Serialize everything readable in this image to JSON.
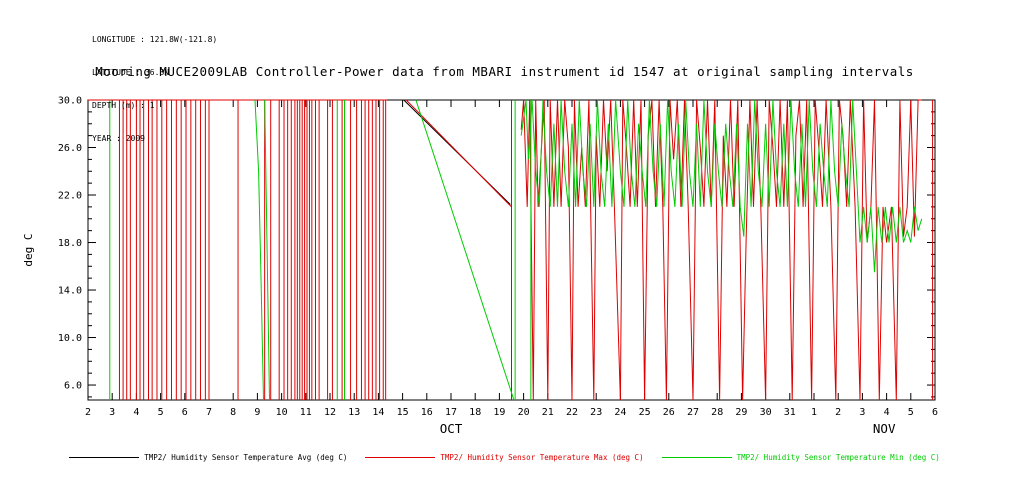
{
  "header": {
    "line1": "LONGITUDE : 121.8W(-121.8)",
    "line2": "LATITUDE : 36.8N",
    "line3": "DEPTH (m) : 1",
    "line4": "YEAR : 2009"
  },
  "title": "Mooring MUCE2009LAB Controller-Power data from MBARI instrument id 1547 at original sampling intervals",
  "chart_data": {
    "type": "line",
    "title": "Mooring MUCE2009LAB Controller-Power data from MBARI instrument id 1547 at original sampling intervals",
    "ylabel": "deg C",
    "xlabel": "",
    "ylim": [
      4.74,
      30.0
    ],
    "xlim": [
      2,
      37
    ],
    "grid": false,
    "legend_position": "bottom",
    "yticks": [
      6,
      10,
      14,
      18,
      22,
      26,
      30
    ],
    "ytick_labels": [
      "6.0",
      "10.0",
      "14.0",
      "18.0",
      "22.0",
      "26.0",
      "30.0"
    ],
    "xtick_labels": [
      "2",
      "3",
      "4",
      "5",
      "6",
      "7",
      "8",
      "9",
      "10",
      "11",
      "12",
      "13",
      "14",
      "15",
      "16",
      "17",
      "18",
      "19",
      "20",
      "21",
      "22",
      "23",
      "24",
      "25",
      "26",
      "27",
      "28",
      "29",
      "30",
      "31",
      "1",
      "2",
      "3",
      "4",
      "5",
      "6"
    ],
    "month_labels": [
      {
        "label": "OCT",
        "day": 17
      },
      {
        "label": "NOV",
        "day": 34.9
      }
    ],
    "series": [
      {
        "name": "TMP2/ Humidity Sensor Temperature Avg (deg C)",
        "color": "#000000",
        "vlines": [],
        "segments": [
          [
            [
              2.0,
              30
            ],
            [
              14.35,
              30
            ]
          ],
          [
            [
              15.05,
              30
            ],
            [
              19.45,
              21.2
            ]
          ]
        ]
      },
      {
        "name": "TMP2/ Humidity Sensor Temperature Max (deg C)",
        "color": "#dd0000",
        "vlines": [
          3.3,
          3.45,
          3.6,
          3.75,
          4.0,
          4.15,
          4.3,
          4.5,
          4.65,
          4.85,
          5.05,
          5.25,
          5.45,
          5.65,
          5.85,
          6.05,
          6.25,
          6.45,
          6.65,
          6.85,
          7.0,
          8.2,
          9.3,
          9.55,
          9.9,
          10.1,
          10.25,
          10.4,
          10.55,
          10.65,
          10.75,
          10.85,
          10.95,
          11.05,
          11.15,
          11.25,
          11.4,
          11.55,
          11.9,
          12.1,
          12.5,
          12.85,
          13.1,
          13.3,
          13.45,
          13.6,
          13.75,
          13.9,
          14.05,
          14.2,
          14.3,
          19.5,
          36.9
        ],
        "segments": [
          [
            [
              2.0,
              30
            ],
            [
              14.35,
              30
            ]
          ],
          [
            [
              15.15,
              30
            ],
            [
              19.5,
              21.0
            ]
          ],
          [
            [
              19.9,
              27.5
            ],
            [
              20.0,
              30
            ],
            [
              20.15,
              21
            ],
            [
              20.25,
              30
            ],
            [
              20.4,
              4.74
            ],
            [
              20.5,
              30
            ],
            [
              20.6,
              21
            ],
            [
              20.85,
              30
            ],
            [
              21.0,
              4.74
            ],
            [
              21.1,
              30
            ],
            [
              21.25,
              21
            ],
            [
              21.4,
              30
            ],
            [
              21.55,
              21
            ],
            [
              21.7,
              30
            ],
            [
              21.85,
              26
            ],
            [
              22.0,
              4.74
            ],
            [
              22.1,
              30
            ],
            [
              22.25,
              21
            ],
            [
              22.4,
              26
            ],
            [
              22.55,
              21
            ],
            [
              22.7,
              30
            ],
            [
              22.9,
              4.74
            ],
            [
              23.0,
              27
            ],
            [
              23.15,
              21
            ],
            [
              23.3,
              30
            ],
            [
              23.45,
              24
            ],
            [
              23.6,
              30
            ],
            [
              23.75,
              21
            ],
            [
              24.0,
              4.74
            ],
            [
              24.1,
              30
            ],
            [
              24.25,
              26
            ],
            [
              24.4,
              21
            ],
            [
              24.55,
              30
            ],
            [
              24.7,
              21
            ],
            [
              24.85,
              30
            ],
            [
              25.0,
              4.74
            ],
            [
              25.15,
              27
            ],
            [
              25.3,
              30
            ],
            [
              25.45,
              21
            ],
            [
              25.6,
              30
            ],
            [
              25.75,
              21
            ],
            [
              25.9,
              4.74
            ],
            [
              26.05,
              30
            ],
            [
              26.2,
              25
            ],
            [
              26.35,
              30
            ],
            [
              26.5,
              21
            ],
            [
              26.65,
              30
            ],
            [
              26.8,
              21
            ],
            [
              27.0,
              4.74
            ],
            [
              27.15,
              30
            ],
            [
              27.3,
              26
            ],
            [
              27.45,
              21
            ],
            [
              27.6,
              30
            ],
            [
              27.75,
              21
            ],
            [
              27.9,
              30
            ],
            [
              28.1,
              4.74
            ],
            [
              28.25,
              27
            ],
            [
              28.4,
              21
            ],
            [
              28.55,
              30
            ],
            [
              28.7,
              21
            ],
            [
              28.85,
              30
            ],
            [
              29.05,
              4.74
            ],
            [
              29.2,
              18.5
            ],
            [
              29.35,
              30
            ],
            [
              29.5,
              21
            ],
            [
              29.65,
              30
            ],
            [
              29.8,
              21
            ],
            [
              30.0,
              4.74
            ],
            [
              30.15,
              30
            ],
            [
              30.3,
              26
            ],
            [
              30.45,
              21
            ],
            [
              30.6,
              30
            ],
            [
              30.75,
              21
            ],
            [
              30.9,
              30
            ],
            [
              31.1,
              4.74
            ],
            [
              31.25,
              27
            ],
            [
              31.4,
              30
            ],
            [
              31.55,
              21
            ],
            [
              31.7,
              30
            ],
            [
              31.9,
              4.74
            ],
            [
              32.05,
              30
            ],
            [
              32.2,
              26
            ],
            [
              32.35,
              21
            ],
            [
              32.5,
              30
            ],
            [
              32.7,
              21
            ],
            [
              32.9,
              4.74
            ],
            [
              33.05,
              30
            ],
            [
              33.2,
              27
            ],
            [
              33.35,
              21
            ],
            [
              33.5,
              30
            ],
            [
              33.7,
              21
            ],
            [
              33.9,
              4.74
            ],
            [
              34.05,
              30
            ],
            [
              34.2,
              18
            ],
            [
              34.35,
              21
            ],
            [
              34.5,
              30
            ],
            [
              34.7,
              4.74
            ],
            [
              34.85,
              21
            ],
            [
              35.0,
              18
            ],
            [
              35.2,
              21
            ],
            [
              35.4,
              4.74
            ],
            [
              35.55,
              30
            ],
            [
              35.7,
              18.5
            ],
            [
              35.85,
              21
            ],
            [
              36.0,
              30
            ],
            [
              36.15,
              18.5
            ],
            [
              36.3,
              30
            ],
            [
              36.45,
              30
            ]
          ]
        ]
      },
      {
        "name": "TMP2/ Humidity Sensor Temperature Min (deg C)",
        "color": "#00cc00",
        "vlines": [
          2.9,
          12.3,
          12.6,
          19.65,
          20.3
        ],
        "segments": [
          [
            [
              8.9,
              30
            ],
            [
              9.05,
              24.0
            ],
            [
              9.15,
              15.0
            ],
            [
              9.25,
              4.74
            ]
          ],
          [
            [
              9.3,
              30
            ],
            [
              9.5,
              4.74
            ]
          ],
          [
            [
              15.55,
              30
            ],
            [
              19.6,
              4.74
            ]
          ],
          [
            [
              19.9,
              27
            ],
            [
              20.0,
              28.5
            ],
            [
              20.1,
              30
            ],
            [
              20.2,
              25
            ],
            [
              20.35,
              30
            ],
            [
              20.5,
              24
            ],
            [
              20.65,
              21
            ],
            [
              20.8,
              30
            ],
            [
              20.95,
              24
            ],
            [
              21.1,
              21
            ],
            [
              21.25,
              28
            ],
            [
              21.4,
              21
            ],
            [
              21.55,
              30
            ],
            [
              21.7,
              24
            ],
            [
              21.85,
              21
            ],
            [
              22.0,
              28
            ],
            [
              22.15,
              21
            ],
            [
              22.3,
              30
            ],
            [
              22.45,
              24
            ],
            [
              22.6,
              21
            ],
            [
              22.75,
              28
            ],
            [
              22.9,
              21
            ],
            [
              23.05,
              30
            ],
            [
              23.2,
              24
            ],
            [
              23.35,
              21
            ],
            [
              23.5,
              28
            ],
            [
              23.65,
              21
            ],
            [
              23.8,
              30
            ],
            [
              24.0,
              24
            ],
            [
              24.15,
              21
            ],
            [
              24.3,
              30
            ],
            [
              24.45,
              24
            ],
            [
              24.6,
              21
            ],
            [
              24.75,
              28
            ],
            [
              24.9,
              24
            ],
            [
              25.05,
              21
            ],
            [
              25.2,
              30
            ],
            [
              25.35,
              24
            ],
            [
              25.5,
              21
            ],
            [
              25.65,
              28
            ],
            [
              25.8,
              21
            ],
            [
              25.95,
              30
            ],
            [
              26.1,
              24
            ],
            [
              26.25,
              21
            ],
            [
              26.4,
              28
            ],
            [
              26.55,
              21
            ],
            [
              26.7,
              30
            ],
            [
              26.85,
              24
            ],
            [
              27.0,
              21
            ],
            [
              27.15,
              28
            ],
            [
              27.3,
              21
            ],
            [
              27.45,
              30
            ],
            [
              27.6,
              24
            ],
            [
              27.75,
              21
            ],
            [
              27.9,
              28
            ],
            [
              28.05,
              24
            ],
            [
              28.2,
              21
            ],
            [
              28.35,
              28
            ],
            [
              28.5,
              24
            ],
            [
              28.65,
              21
            ],
            [
              28.8,
              28
            ],
            [
              28.95,
              21
            ],
            [
              29.1,
              18.5
            ],
            [
              29.25,
              28
            ],
            [
              29.4,
              21
            ],
            [
              29.55,
              30
            ],
            [
              29.7,
              24
            ],
            [
              29.85,
              21
            ],
            [
              30.0,
              28
            ],
            [
              30.15,
              21
            ],
            [
              30.3,
              30
            ],
            [
              30.45,
              24
            ],
            [
              30.6,
              21
            ],
            [
              30.75,
              28
            ],
            [
              30.9,
              21
            ],
            [
              31.05,
              30
            ],
            [
              31.2,
              24
            ],
            [
              31.35,
              21
            ],
            [
              31.5,
              28
            ],
            [
              31.65,
              21
            ],
            [
              31.8,
              30
            ],
            [
              31.95,
              24
            ],
            [
              32.1,
              21
            ],
            [
              32.25,
              28
            ],
            [
              32.4,
              24
            ],
            [
              32.55,
              21
            ],
            [
              32.7,
              30
            ],
            [
              32.85,
              24
            ],
            [
              33.0,
              21
            ],
            [
              33.15,
              28
            ],
            [
              33.3,
              24
            ],
            [
              33.45,
              21
            ],
            [
              33.6,
              30
            ],
            [
              33.75,
              24
            ],
            [
              33.9,
              18
            ],
            [
              34.05,
              21
            ],
            [
              34.2,
              18
            ],
            [
              34.35,
              21
            ],
            [
              34.5,
              15.5
            ],
            [
              34.65,
              21
            ],
            [
              34.8,
              18
            ],
            [
              34.95,
              21
            ],
            [
              35.1,
              18
            ],
            [
              35.25,
              21
            ],
            [
              35.4,
              18
            ],
            [
              35.55,
              21
            ],
            [
              35.7,
              18
            ],
            [
              35.85,
              19
            ],
            [
              36.0,
              18
            ],
            [
              36.15,
              21
            ],
            [
              36.3,
              19
            ],
            [
              36.45,
              20
            ]
          ]
        ]
      }
    ]
  },
  "legend": {
    "items": [
      {
        "label": "TMP2/ Humidity Sensor Temperature Avg (deg C)"
      },
      {
        "label": "TMP2/ Humidity Sensor Temperature Max (deg C)"
      },
      {
        "label": "TMP2/ Humidity Sensor Temperature Min (deg C)"
      }
    ]
  }
}
